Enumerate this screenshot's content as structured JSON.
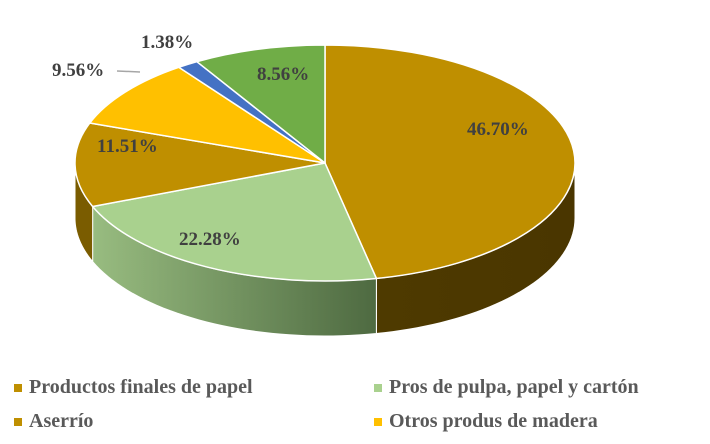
{
  "chart_data": {
    "type": "pie",
    "style": "3d-pie",
    "title": "",
    "start_angle_deg": 0,
    "direction": "clockwise",
    "slices": [
      {
        "label": "Productos finales de papel",
        "value": 46.7,
        "display": "46.70%",
        "color": "#BF8F00",
        "in_legend": true
      },
      {
        "label": "Pros de pulpa, papel y cartón",
        "value": 22.28,
        "display": "22.28%",
        "color": "#A9D18E",
        "in_legend": true
      },
      {
        "label": "Aserrío",
        "value": 11.51,
        "display": "11.51%",
        "color": "#BF8F00",
        "in_legend": true
      },
      {
        "label": "Otros produs de madera",
        "value": 9.56,
        "display": "9.56%",
        "color": "#FFC000",
        "in_legend": true
      },
      {
        "label": "",
        "value": 1.38,
        "display": "1.38%",
        "color": "#4472C4",
        "in_legend": false
      },
      {
        "label": "",
        "value": 8.56,
        "display": "8.56%",
        "color": "#70AD47",
        "in_legend": false
      }
    ],
    "legend_position": "bottom",
    "data_labels": true
  },
  "legend": {
    "items": [
      {
        "label": "Productos finales de papel",
        "color": "#BF8F00"
      },
      {
        "label": "Pros de pulpa, papel y cartón",
        "color": "#A9D18E"
      },
      {
        "label": "Aserrío",
        "color": "#BF8F00"
      },
      {
        "label": "Otros produs de madera",
        "color": "#FFC000"
      }
    ]
  },
  "labels": {
    "s0": "46.70%",
    "s1": "22.28%",
    "s2": "11.51%",
    "s3": "9.56%",
    "s4": "1.38%",
    "s5": "8.56%"
  }
}
